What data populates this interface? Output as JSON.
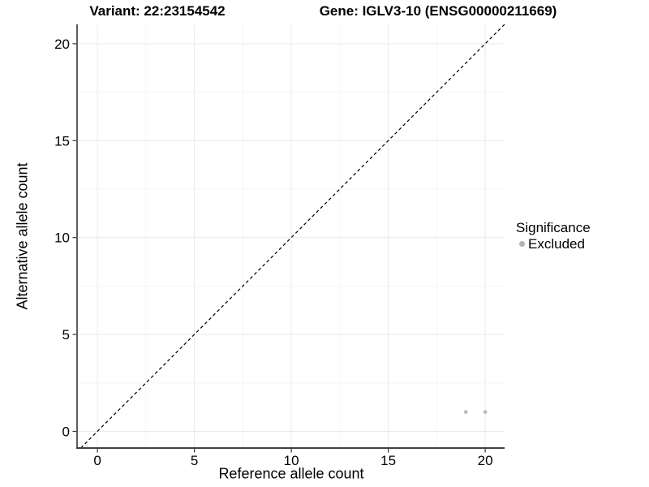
{
  "header": {
    "variant_title": "Variant: 22:23154542",
    "gene_title": "Gene: IGLV3-10 (ENSG00000211669)"
  },
  "chart_data": {
    "type": "scatter",
    "xlabel": "Reference allele count",
    "ylabel": "Alternative allele count",
    "xlim": [
      -1.05,
      21.0
    ],
    "ylim": [
      -0.86,
      21.0
    ],
    "x_ticks": [
      0,
      5,
      10,
      15,
      20
    ],
    "y_ticks": [
      0,
      5,
      10,
      15,
      20
    ],
    "x_minor_ticks": [
      2.5,
      7.5,
      12.5,
      17.5
    ],
    "y_minor_ticks": [
      2.5,
      7.5,
      12.5,
      17.5
    ],
    "grid": true,
    "series": [
      {
        "name": "Excluded",
        "color": "#bdbdbd",
        "points": [
          {
            "x": 19,
            "y": 1
          },
          {
            "x": 20,
            "y": 1
          }
        ]
      }
    ],
    "identity_line": {
      "description": "y = x reference line",
      "slope": 1,
      "intercept": 0,
      "style": "dashed",
      "color": "#000000"
    },
    "legend": {
      "title": "Significance",
      "position": "right",
      "items": [
        {
          "label": "Excluded",
          "color": "#b3b3b3"
        }
      ]
    }
  },
  "colors": {
    "background": "#ffffff",
    "grid_major": "#ebebeb",
    "grid_minor": "#f4f4f4",
    "axis_line": "#404040",
    "tick_mark": "#333333",
    "point": "#bdbdbd",
    "text": "#000000"
  }
}
